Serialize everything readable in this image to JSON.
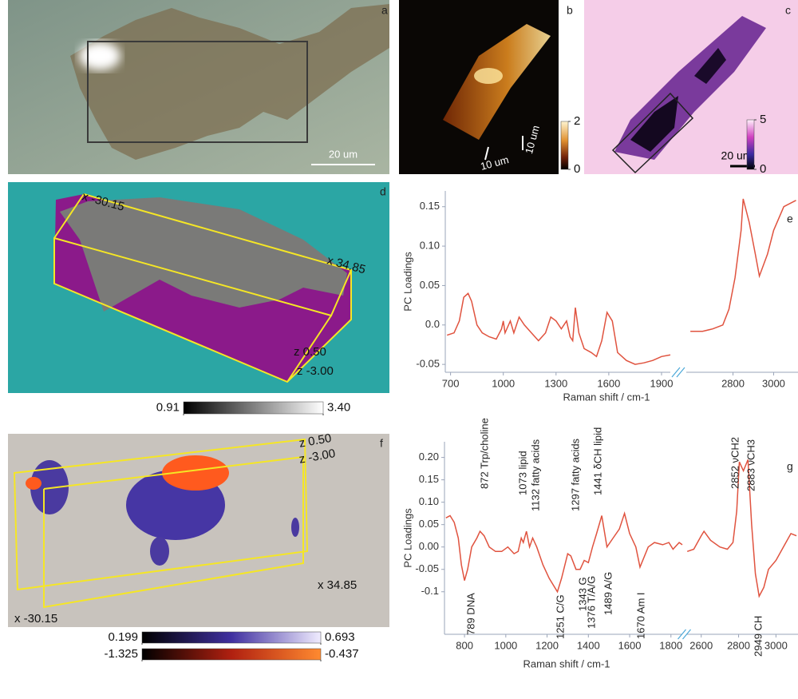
{
  "panels": {
    "a": {
      "label": "a",
      "scale_bar": "20 um"
    },
    "b": {
      "label": "b",
      "scale_x": "10 um",
      "scale_y": "10 um",
      "colorbar": {
        "ticks": [
          2,
          0
        ]
      }
    },
    "c": {
      "label": "c",
      "scale_bar": "20 um",
      "colorbar": {
        "ticks": [
          5,
          0
        ]
      }
    },
    "d": {
      "label": "d",
      "axis_labels": [
        "x -30.15",
        "x 34.85",
        "z 0.50",
        "z -3.00"
      ],
      "colorbar": {
        "ticks": [
          0.91,
          {
            "value": 3.4,
            "label": "3.40"
          }
        ]
      }
    },
    "e": {
      "label": "e"
    },
    "f": {
      "label": "f",
      "axis_labels": [
        "z 0.50",
        "z -3.00",
        "x 34.85",
        "x -30.15"
      ],
      "colorbars": [
        {
          "ticks": [
            0.199,
            0.693
          ]
        },
        {
          "ticks": [
            -1.325,
            -0.437
          ]
        }
      ]
    },
    "g": {
      "label": "g",
      "annotations": [
        "789 DNA",
        "872 Trp/choline",
        "1073 lipid",
        "1132 fatty acids",
        "1251 C/G",
        "1297 fatty acids",
        "1343 G",
        "1376 T/A/G",
        "1441 δCH lipid",
        "1489 A/G",
        "1670 Am I",
        "2852 νCH2",
        "2883 νCH3",
        "2949 CH"
      ]
    }
  },
  "chart_data": [
    {
      "type": "line",
      "y_label": "PC Loadings",
      "x_label": "Raman shift / cm-1",
      "ylim": [
        -0.06,
        0.17
      ],
      "yticks": [
        -0.05,
        {
          "value": 0,
          "label": "0.0"
        },
        0.05,
        {
          "value": 0.1,
          "label": "0.10"
        },
        0.15
      ],
      "x_segments": [
        {
          "xlim": [
            670,
            1950
          ],
          "xticks": [
            700,
            1000,
            1300,
            1600,
            1900
          ]
        },
        {
          "xlim": [
            2570,
            3120
          ],
          "xticks": [
            2800,
            3000
          ]
        }
      ],
      "series": [
        {
          "color": "#e0533f",
          "x": [
            680,
            720,
            750,
            775,
            800,
            820,
            850,
            880,
            920,
            960,
            990,
            1000,
            1010,
            1040,
            1060,
            1090,
            1120,
            1160,
            1200,
            1240,
            1270,
            1300,
            1330,
            1360,
            1380,
            1395,
            1410,
            1430,
            1460,
            1500,
            1530,
            1560,
            1590,
            1620,
            1650,
            1700,
            1750,
            1800,
            1850,
            1900,
            1950
          ],
          "values": [
            -0.013,
            -0.01,
            0.005,
            0.035,
            0.04,
            0.03,
            0.0,
            -0.01,
            -0.015,
            -0.018,
            -0.005,
            0.005,
            -0.01,
            0.005,
            -0.01,
            0.01,
            0.0,
            -0.01,
            -0.02,
            -0.01,
            0.01,
            0.005,
            -0.005,
            0.005,
            -0.015,
            -0.02,
            0.022,
            -0.01,
            -0.03,
            -0.035,
            -0.04,
            -0.02,
            0.016,
            0.005,
            -0.035,
            -0.045,
            -0.05,
            -0.048,
            -0.045,
            -0.04,
            -0.038
          ]
        },
        {
          "color": "#e0533f",
          "x": [
            2590,
            2650,
            2700,
            2750,
            2780,
            2810,
            2840,
            2850,
            2880,
            2910,
            2930,
            2970,
            3000,
            3050,
            3110
          ],
          "values": [
            -0.008,
            -0.008,
            -0.005,
            0.0,
            0.02,
            0.06,
            0.12,
            0.16,
            0.13,
            0.09,
            0.062,
            0.09,
            0.12,
            0.15,
            0.158
          ]
        }
      ]
    },
    {
      "type": "line",
      "y_label": "PC Loadings",
      "x_label": "Raman shift / cm-1",
      "ylim": [
        -0.195,
        0.235
      ],
      "yticks": [
        -0.1,
        -0.05,
        {
          "value": 0,
          "label": "0.00"
        },
        0.05,
        {
          "value": 0.1,
          "label": "0.10"
        },
        0.15,
        {
          "value": 0.2,
          "label": "0.20"
        }
      ],
      "x_segments": [
        {
          "xlim": [
            703,
            1855
          ],
          "xticks": [
            800,
            1000,
            1200,
            1400,
            1600,
            1800
          ]
        },
        {
          "xlim": [
            2520,
            3118
          ],
          "xticks": [
            2600,
            2800,
            3000
          ]
        }
      ],
      "series": [
        {
          "color": "#e0533f",
          "x": [
            710,
            730,
            750,
            770,
            785,
            800,
            815,
            835,
            860,
            875,
            895,
            920,
            950,
            980,
            1010,
            1040,
            1060,
            1075,
            1085,
            1100,
            1115,
            1130,
            1150,
            1180,
            1210,
            1250,
            1270,
            1300,
            1315,
            1340,
            1360,
            1380,
            1400,
            1420,
            1440,
            1465,
            1490,
            1520,
            1550,
            1575,
            1600,
            1630,
            1650,
            1690,
            1720,
            1760,
            1790,
            1810,
            1840,
            1855
          ],
          "values": [
            0.065,
            0.07,
            0.055,
            0.02,
            -0.04,
            -0.075,
            -0.05,
            0.0,
            0.02,
            0.035,
            0.025,
            0.0,
            -0.01,
            -0.01,
            0.0,
            -0.015,
            -0.01,
            0.02,
            0.01,
            0.035,
            0.0,
            0.02,
            0.0,
            -0.04,
            -0.07,
            -0.1,
            -0.07,
            -0.015,
            -0.02,
            -0.05,
            -0.05,
            -0.03,
            -0.035,
            0.0,
            0.03,
            0.07,
            0.0,
            0.02,
            0.04,
            0.075,
            0.03,
            0.0,
            -0.045,
            0.0,
            0.01,
            0.005,
            0.01,
            -0.005,
            0.01,
            0.005
          ]
        },
        {
          "color": "#e0533f",
          "x": [
            2525,
            2560,
            2600,
            2615,
            2650,
            2700,
            2740,
            2770,
            2790,
            2804,
            2826,
            2850,
            2870,
            2890,
            2910,
            2935,
            2960,
            3000,
            3040,
            3080,
            3110
          ],
          "values": [
            -0.01,
            -0.005,
            0.025,
            0.035,
            0.015,
            0.0,
            -0.005,
            0.01,
            0.08,
            0.19,
            0.17,
            0.195,
            0.05,
            -0.06,
            -0.11,
            -0.09,
            -0.05,
            -0.03,
            0.0,
            0.03,
            0.025
          ]
        }
      ]
    }
  ]
}
